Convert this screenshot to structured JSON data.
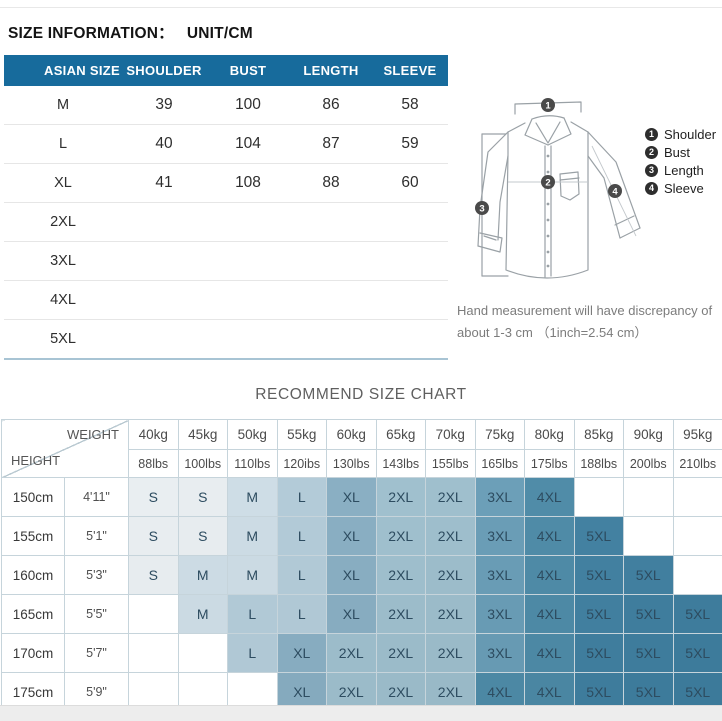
{
  "header": {
    "title": "SIZE INFORMATION：",
    "unit": "UNIT/CM"
  },
  "size_table": {
    "accent_color": "#176b9c",
    "columns": [
      "ASIAN SIZE",
      "SHOULDER",
      "BUST",
      "LENGTH",
      "SLEEVE"
    ],
    "rows": [
      {
        "size": "M",
        "values": [
          "39",
          "100",
          "86",
          "58"
        ]
      },
      {
        "size": "L",
        "values": [
          "40",
          "104",
          "87",
          "59"
        ]
      },
      {
        "size": "XL",
        "values": [
          "41",
          "108",
          "88",
          "60"
        ]
      },
      {
        "size": "2XL",
        "values": [
          "",
          "",
          "",
          ""
        ]
      },
      {
        "size": "3XL",
        "values": [
          "",
          "",
          "",
          ""
        ]
      },
      {
        "size": "4XL",
        "values": [
          "",
          "",
          "",
          ""
        ]
      },
      {
        "size": "5XL",
        "values": [
          "",
          "",
          "",
          ""
        ]
      }
    ]
  },
  "measurement_diagram": {
    "legend": [
      {
        "num": "1",
        "label": "Shoulder"
      },
      {
        "num": "2",
        "label": "Bust"
      },
      {
        "num": "3",
        "label": "Length"
      },
      {
        "num": "4",
        "label": "Sleeve"
      }
    ],
    "caption_line1": "Hand measurement will have discrepancy of",
    "caption_line2": "about 1-3 cm （1inch=2.54 cm）"
  },
  "recommend_chart": {
    "title": "RECOMMEND SIZE CHART",
    "corner": {
      "weight_label": "WEIGHT",
      "height_label": "HEIGHT"
    },
    "weights_kg": [
      "40kg",
      "45kg",
      "50kg",
      "55kg",
      "60kg",
      "65kg",
      "70kg",
      "75kg",
      "80kg",
      "85kg",
      "90kg",
      "95kg"
    ],
    "weights_lbs": [
      "88lbs",
      "100lbs",
      "110lbs",
      "120ibs",
      "130lbs",
      "143lbs",
      "155lbs",
      "165lbs",
      "175lbs",
      "188lbs",
      "200lbs",
      "210lbs"
    ],
    "rows": [
      {
        "height_cm": "150cm",
        "height_ft": "4'11\"",
        "sizes": [
          "S",
          "S",
          "M",
          "L",
          "XL",
          "2XL",
          "2XL",
          "3XL",
          "4XL",
          "",
          "",
          ""
        ]
      },
      {
        "height_cm": "155cm",
        "height_ft": "5'1\"",
        "sizes": [
          "S",
          "S",
          "M",
          "L",
          "XL",
          "2XL",
          "2XL",
          "3XL",
          "4XL",
          "5XL",
          "",
          ""
        ]
      },
      {
        "height_cm": "160cm",
        "height_ft": "5'3\"",
        "sizes": [
          "S",
          "M",
          "M",
          "L",
          "XL",
          "2XL",
          "2XL",
          "3XL",
          "4XL",
          "5XL",
          "5XL",
          ""
        ]
      },
      {
        "height_cm": "165cm",
        "height_ft": "5'5\"",
        "sizes": [
          "",
          "M",
          "L",
          "L",
          "XL",
          "2XL",
          "2XL",
          "3XL",
          "4XL",
          "5XL",
          "5XL",
          "5XL"
        ]
      },
      {
        "height_cm": "170cm",
        "height_ft": "5'7\"",
        "sizes": [
          "",
          "",
          "L",
          "XL",
          "2XL",
          "2XL",
          "2XL",
          "3XL",
          "4XL",
          "5XL",
          "5XL",
          "5XL"
        ]
      },
      {
        "height_cm": "175cm",
        "height_ft": "5'9\"",
        "sizes": [
          "",
          "",
          "",
          "XL",
          "2XL",
          "2XL",
          "2XL",
          "4XL",
          "4XL",
          "5XL",
          "5XL",
          "5XL"
        ]
      }
    ],
    "size_colors": {
      "S": "#e9eef1",
      "M": "#d0dfe8",
      "L": "#b7cfdc",
      "XL": "#8fb4c8",
      "2XL": "#a6c6d4",
      "3XL": "#74a7c0",
      "4XL": "#5a96b2",
      "5XL": "#4f8dad"
    }
  },
  "chart_data": [
    {
      "type": "table",
      "title": "SIZE INFORMATION: UNIT/CM",
      "columns": [
        "ASIAN SIZE",
        "SHOULDER",
        "BUST",
        "LENGTH",
        "SLEEVE"
      ],
      "rows": [
        [
          "M",
          39,
          100,
          86,
          58
        ],
        [
          "L",
          40,
          104,
          87,
          59
        ],
        [
          "XL",
          41,
          108,
          88,
          60
        ],
        [
          "2XL",
          null,
          null,
          null,
          null
        ],
        [
          "3XL",
          null,
          null,
          null,
          null
        ],
        [
          "4XL",
          null,
          null,
          null,
          null
        ],
        [
          "5XL",
          null,
          null,
          null,
          null
        ]
      ]
    },
    {
      "type": "table",
      "title": "RECOMMEND SIZE CHART",
      "columns": [
        "HEIGHT",
        "HEIGHT(ft)",
        "40kg/88lbs",
        "45kg/100lbs",
        "50kg/110lbs",
        "55kg/120ibs",
        "60kg/130lbs",
        "65kg/143lbs",
        "70kg/155lbs",
        "75kg/165lbs",
        "80kg/175lbs",
        "85kg/188lbs",
        "90kg/200lbs",
        "95kg/210lbs"
      ],
      "rows": [
        [
          "150cm",
          "4'11\"",
          "S",
          "S",
          "M",
          "L",
          "XL",
          "2XL",
          "2XL",
          "3XL",
          "4XL",
          "",
          "",
          ""
        ],
        [
          "155cm",
          "5'1\"",
          "S",
          "S",
          "M",
          "L",
          "XL",
          "2XL",
          "2XL",
          "3XL",
          "4XL",
          "5XL",
          "",
          ""
        ],
        [
          "160cm",
          "5'3\"",
          "S",
          "M",
          "M",
          "L",
          "XL",
          "2XL",
          "2XL",
          "3XL",
          "4XL",
          "5XL",
          "5XL",
          ""
        ],
        [
          "165cm",
          "5'5\"",
          "",
          "M",
          "L",
          "L",
          "XL",
          "2XL",
          "2XL",
          "3XL",
          "4XL",
          "5XL",
          "5XL",
          "5XL"
        ],
        [
          "170cm",
          "5'7\"",
          "",
          "",
          "L",
          "XL",
          "2XL",
          "2XL",
          "2XL",
          "3XL",
          "4XL",
          "5XL",
          "5XL",
          "5XL"
        ],
        [
          "175cm",
          "5'9\"",
          "",
          "",
          "",
          "XL",
          "2XL",
          "2XL",
          "2XL",
          "4XL",
          "4XL",
          "5XL",
          "5XL",
          "5XL"
        ]
      ]
    }
  ]
}
